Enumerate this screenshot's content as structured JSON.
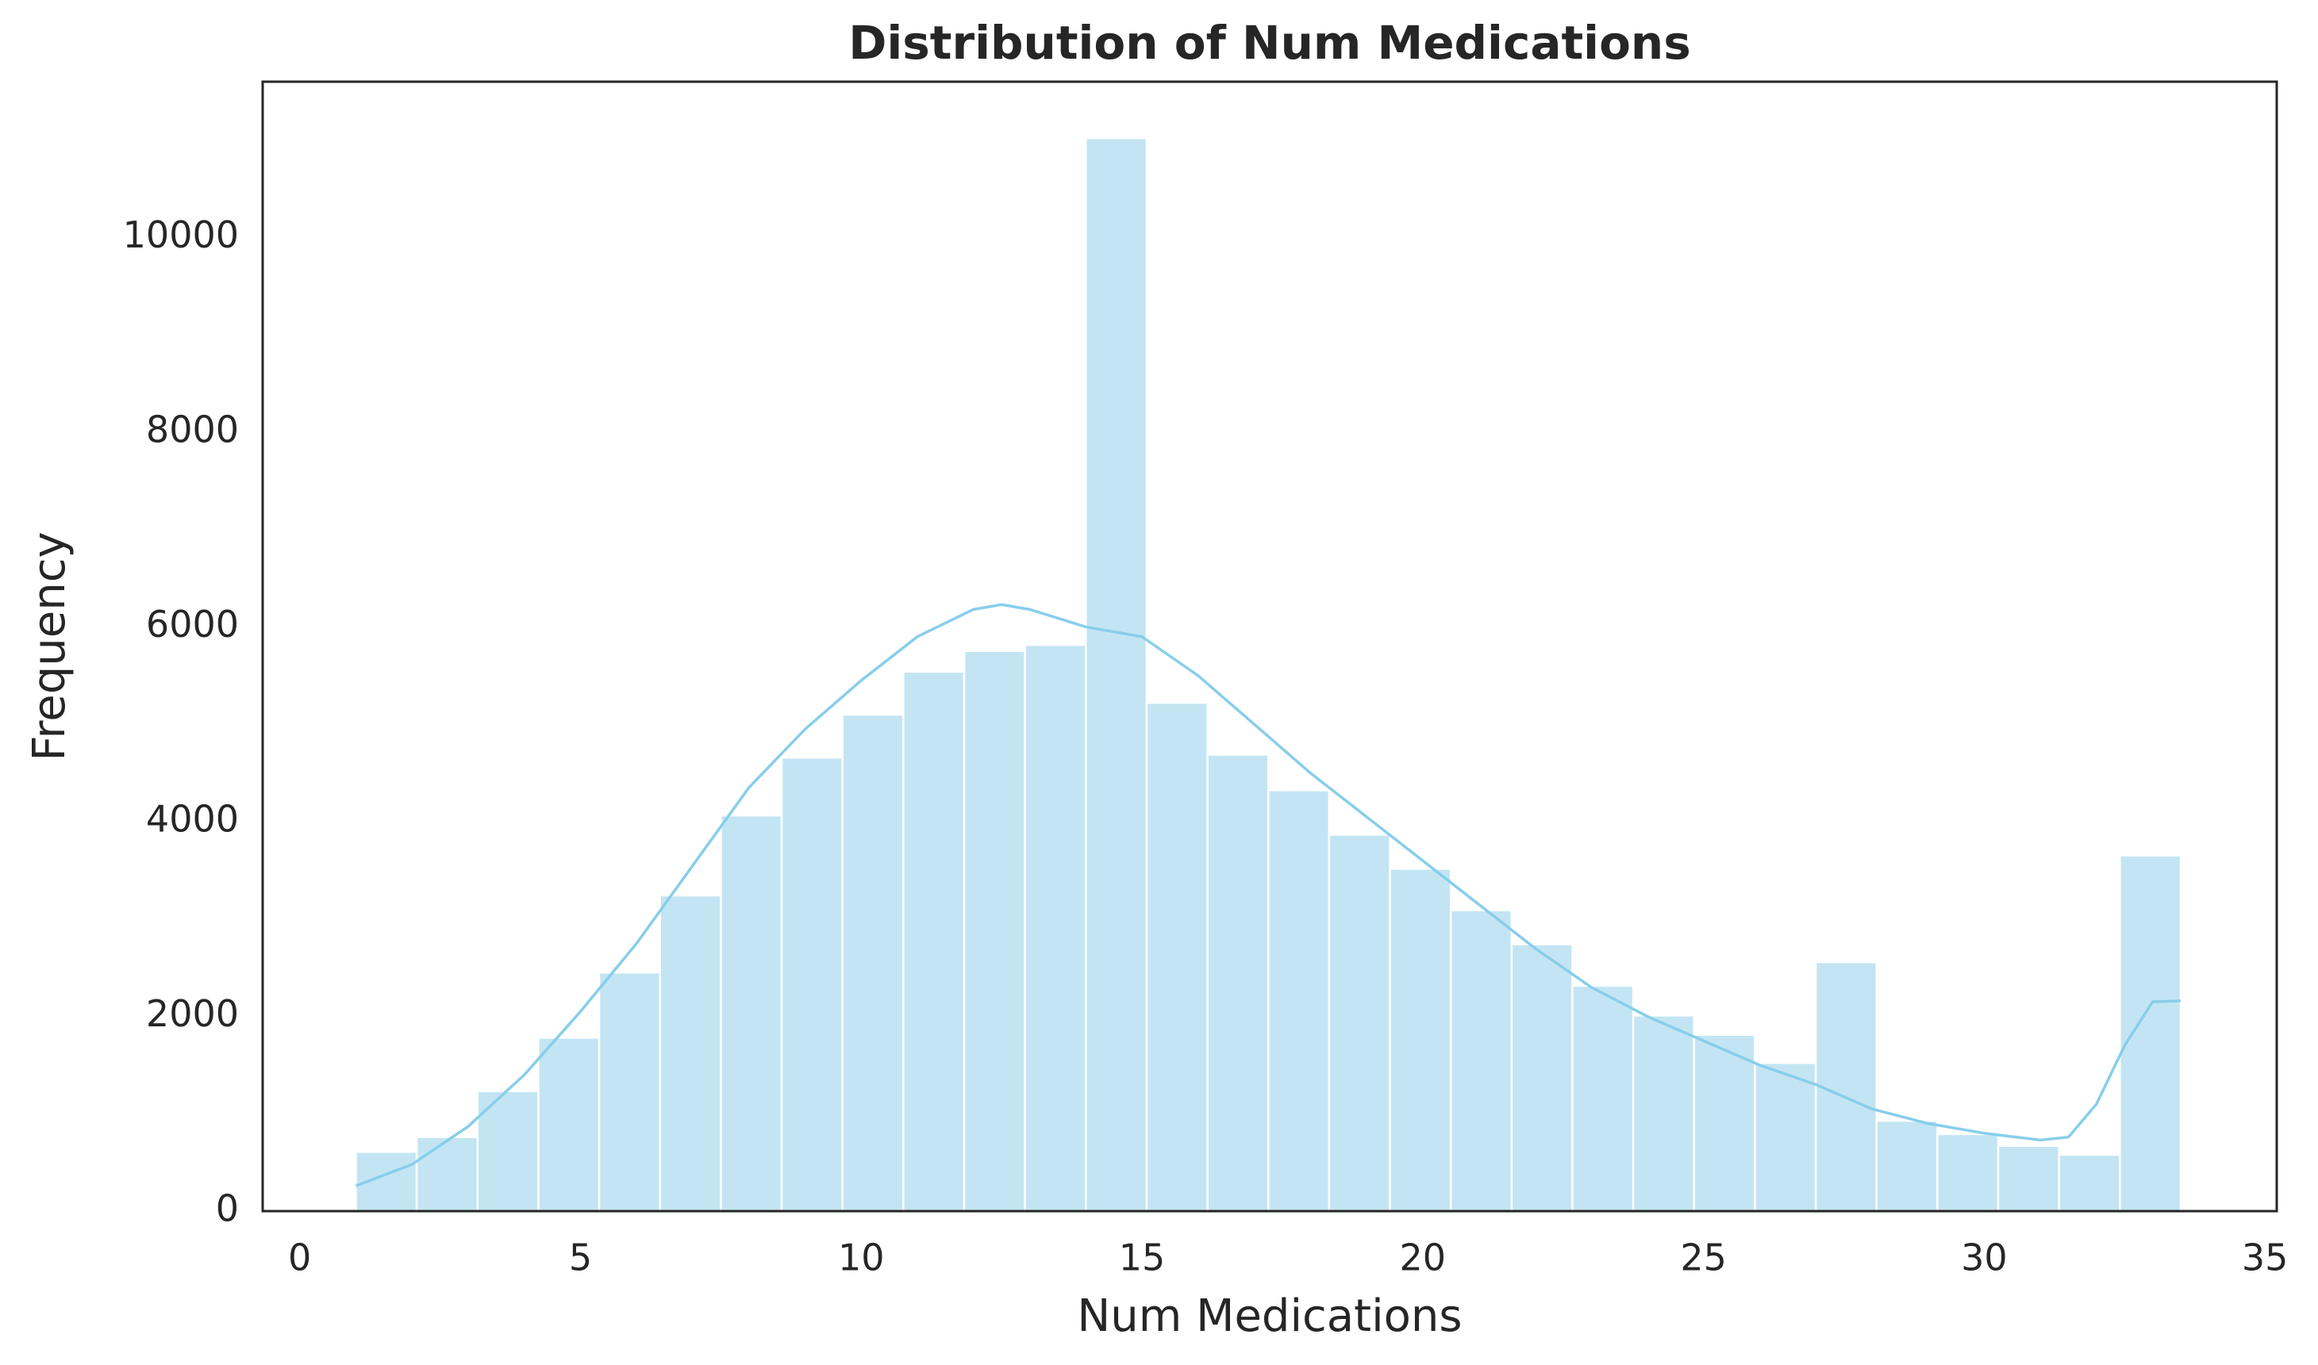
{
  "chart_data": {
    "type": "histogram",
    "title": "Distribution of Num Medications",
    "x_label": "Num Medications",
    "y_label": "Frequency",
    "bins": [
      1,
      2.083,
      3.167,
      4.25,
      5.333,
      6.417,
      7.5,
      8.583,
      9.667,
      10.75,
      11.833,
      12.917,
      14,
      15.083,
      16.167,
      17.25,
      18.333,
      19.417,
      20.5,
      21.583,
      22.667,
      23.75,
      24.833,
      25.917,
      27,
      28.083,
      29.167,
      30.25,
      31.333,
      32.417,
      33.5
    ],
    "values": [
      609,
      761,
      1233,
      1781,
      2451,
      3242,
      4064,
      4658,
      5099,
      5540,
      5753,
      5814,
      11020,
      5221,
      4688,
      4323,
      3866,
      3516,
      3090,
      2740,
      2314,
      2009,
      1811,
      1522,
      2557,
      928,
      791,
      670,
      578,
      3653
    ],
    "color": "#c3e5f3",
    "kde": {
      "color": "#87ceeb",
      "x": [
        1,
        2,
        3,
        4,
        5,
        6,
        7,
        8,
        9,
        10,
        11,
        12,
        12.5,
        13,
        14,
        15,
        16,
        17,
        18,
        19,
        20,
        21,
        22,
        23,
        24,
        25,
        26,
        27,
        28,
        29,
        30,
        31,
        31.5,
        32,
        32.5,
        33,
        33.5
      ],
      "values": [
        260,
        480,
        870,
        1400,
        2050,
        2750,
        3550,
        4350,
        4950,
        5450,
        5900,
        6180,
        6230,
        6180,
        6000,
        5900,
        5500,
        5000,
        4500,
        4050,
        3600,
        3150,
        2700,
        2300,
        2000,
        1750,
        1500,
        1300,
        1050,
        900,
        800,
        730,
        760,
        1100,
        1700,
        2150,
        2160
      ]
    },
    "xlim": [
      -0.66,
      35.21
    ],
    "ylim": [
      0,
      11600
    ],
    "xticks": [
      0,
      5,
      10,
      15,
      20,
      25,
      30,
      35
    ],
    "yticks": [
      0,
      2000,
      4000,
      6000,
      8000,
      10000
    ],
    "grid": false
  }
}
